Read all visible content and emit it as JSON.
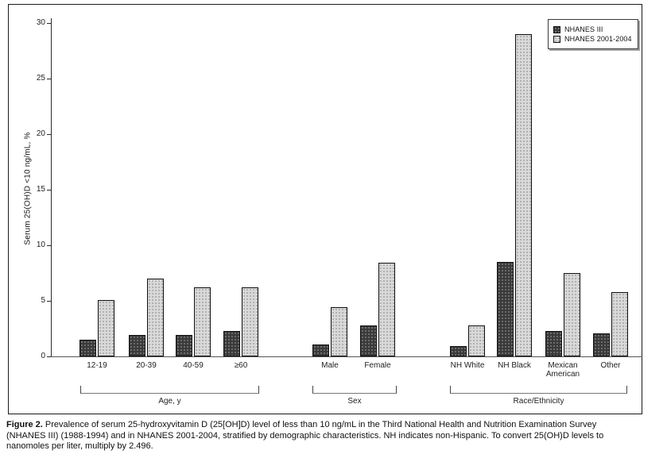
{
  "figure": {
    "caption_label": "Figure 2.",
    "caption_lines": [
      "Prevalence of serum 25-hydroxyvitamin D (25[OH]D) level of less than 10 ng/mL in the Third National Health and Nutrition Examination Survey",
      "(NHANES III) (1988-1994) and in NHANES 2001-2004, stratified by demographic characteristics. NH indicates non-Hispanic. To convert 25(OH)D levels to",
      "nanomoles per liter, multiply by 2.496."
    ]
  },
  "chart_data": {
    "type": "bar",
    "title": "",
    "xlabel": "",
    "ylabel": "Serum 25(OH)D <10 ng/mL, %",
    "ylim": [
      0,
      30
    ],
    "yticks": [
      0,
      5,
      10,
      15,
      20,
      25,
      30
    ],
    "grid": false,
    "legend_position": "top-right",
    "groups": [
      {
        "label": "Age, y",
        "categories": [
          "12-19",
          "20-39",
          "40-59",
          "≥60"
        ]
      },
      {
        "label": "Sex",
        "categories": [
          "Male",
          "Female"
        ]
      },
      {
        "label": "Race/Ethnicity",
        "categories": [
          "NH White",
          "NH Black",
          "Mexican American",
          "Other"
        ]
      }
    ],
    "series": [
      {
        "name": "NHANES III",
        "color": "#3a3a3a",
        "values": [
          1.5,
          1.9,
          1.9,
          2.3,
          1.1,
          2.8,
          0.9,
          8.5,
          2.3,
          2.1
        ]
      },
      {
        "name": "NHANES 2001-2004",
        "color": "#d9d9d9",
        "values": [
          5.1,
          7.0,
          6.2,
          6.2,
          4.4,
          8.4,
          2.8,
          29.0,
          7.5,
          5.8
        ]
      }
    ]
  }
}
